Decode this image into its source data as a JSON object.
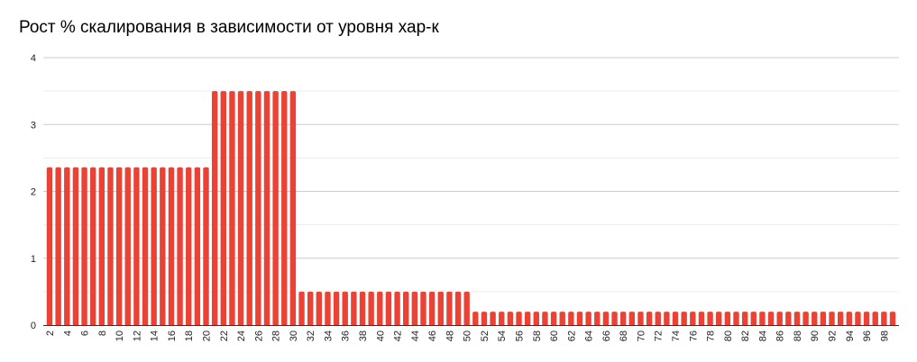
{
  "chart_data": {
    "type": "bar",
    "title": "Рост % скалирования в зависимости от уровня хар-к",
    "xlabel": "",
    "ylabel": "",
    "ylim": [
      0,
      4
    ],
    "yticks": [
      0,
      1,
      2,
      3,
      4
    ],
    "grid": true,
    "bar_color": "#ea4335",
    "x_start": 2,
    "x_end": 99,
    "x_label_step": 2,
    "segments": [
      {
        "from": 2,
        "to": 20,
        "value": 2.36
      },
      {
        "from": 21,
        "to": 30,
        "value": 3.5
      },
      {
        "from": 31,
        "to": 50,
        "value": 0.5
      },
      {
        "from": 51,
        "to": 99,
        "value": 0.2
      }
    ]
  }
}
